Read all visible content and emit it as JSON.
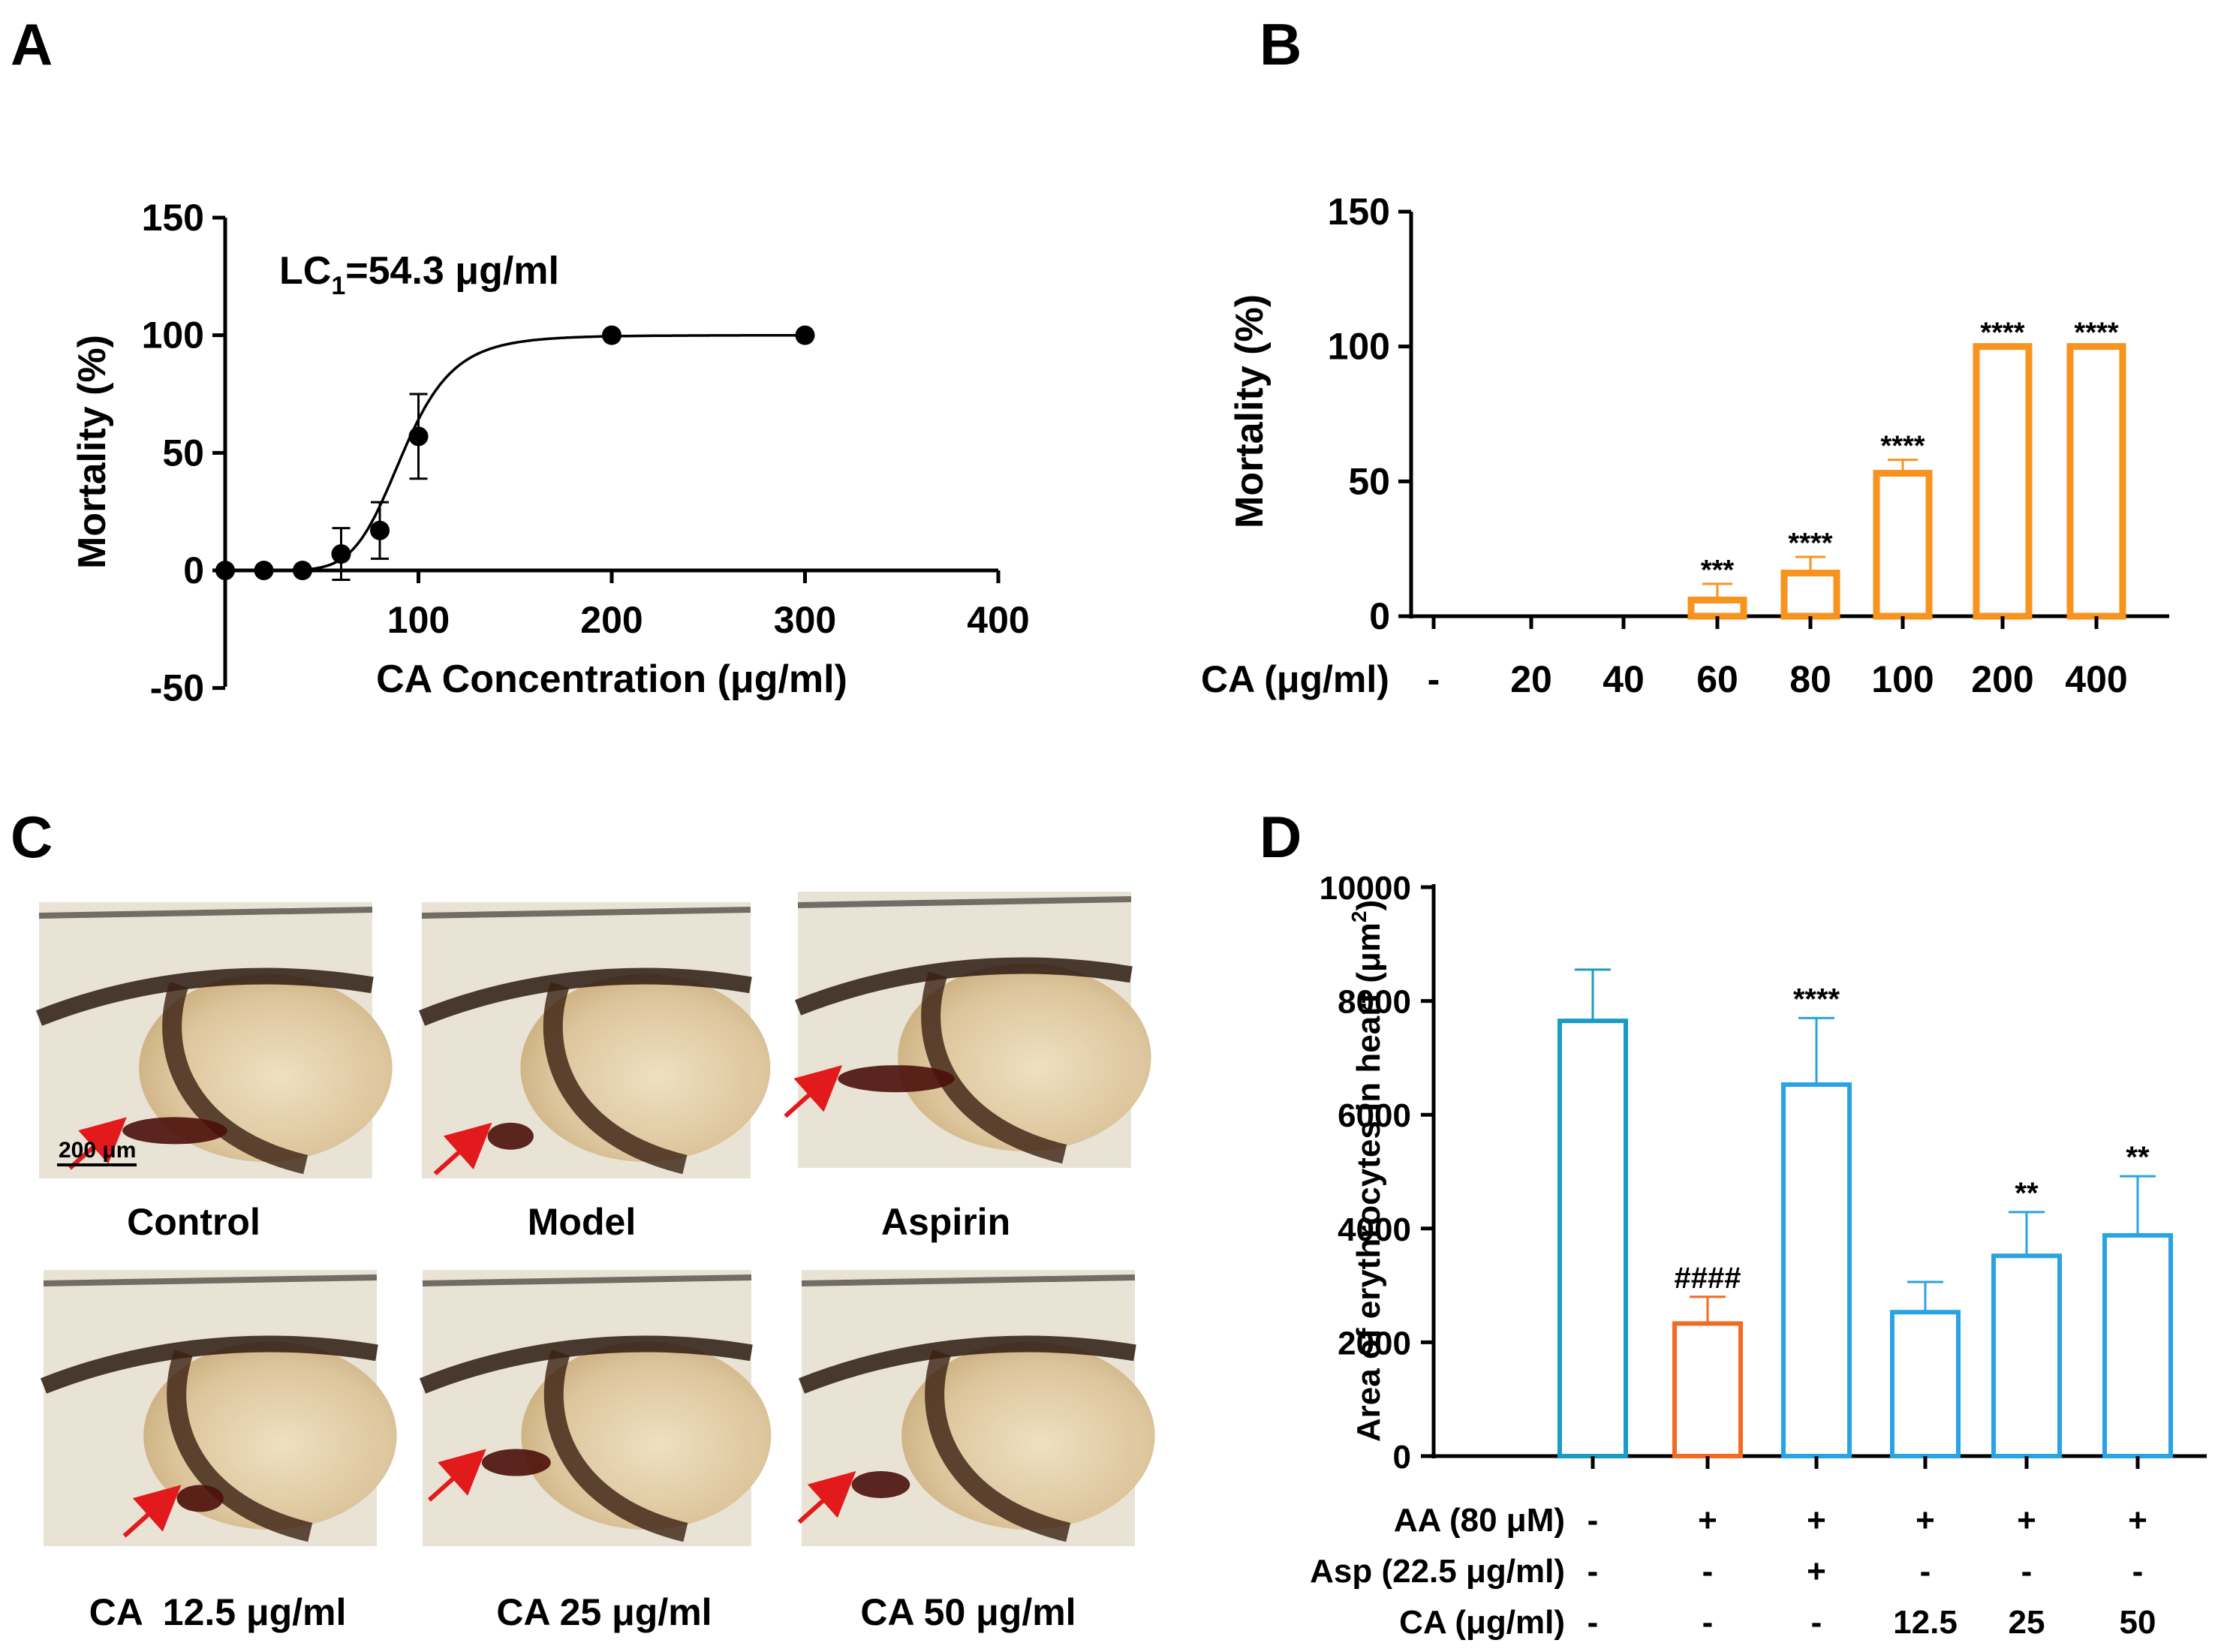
{
  "panels": {
    "A": {
      "letter": "A",
      "chart_data": {
        "type": "scatter",
        "title": "",
        "annotation_main": "LC",
        "annotation_sub": "1",
        "annotation_rest": "=54.3 μg/ml",
        "xlabel": "CA Concentration (μg/ml)",
        "ylabel": "Mortality (%)",
        "xlim": [
          0,
          400
        ],
        "ylim": [
          -50,
          150
        ],
        "x_ticks": [
          "100",
          "200",
          "300",
          "400"
        ],
        "y_ticks": [
          "150",
          "100",
          "50",
          "0",
          "-50"
        ],
        "x": [
          0,
          20,
          40,
          60,
          80,
          100,
          200,
          300
        ],
        "y": [
          0,
          0,
          0,
          7,
          17,
          57,
          100,
          100
        ],
        "err": [
          0,
          0,
          0,
          11,
          12,
          18,
          0,
          0
        ],
        "fit": {
          "bottom": 0,
          "top": 100,
          "ec50": 92,
          "hill": 7
        }
      }
    },
    "B": {
      "letter": "B",
      "chart_data": {
        "type": "bar",
        "ylabel": "Mortality (%)",
        "ylim": [
          0,
          150
        ],
        "y_ticks": [
          "150",
          "100",
          "50",
          "0"
        ],
        "row_label": "CA (μg/ml)",
        "categories": [
          "-",
          "20",
          "40",
          "60",
          "80",
          "100",
          "200",
          "400"
        ],
        "values": [
          0,
          0,
          0,
          6,
          16,
          53,
          100,
          100
        ],
        "err": [
          0,
          0,
          0,
          6,
          6,
          5,
          0,
          0
        ],
        "significance": [
          "",
          "",
          "",
          "***",
          "****",
          "****",
          "****",
          "****"
        ],
        "color": "#f7931e"
      }
    },
    "C": {
      "letter": "C",
      "scale_bar": "200 μm",
      "captions": [
        "Control",
        "Model",
        "Aspirin",
        "CA  12.5 μg/ml",
        "CA 25 μg/ml",
        "CA 50 μg/ml"
      ]
    },
    "D": {
      "letter": "D",
      "chart_data": {
        "type": "bar",
        "ylabel_main": "Area of erythrocytes in heart (μm",
        "ylabel_sup": "2",
        "ylabel_end": ")",
        "ylim": [
          0,
          10000
        ],
        "y_ticks": [
          "10000",
          "8000",
          "6000",
          "4000",
          "2000",
          "0"
        ],
        "values": [
          7650,
          2330,
          6530,
          2530,
          3520,
          3880
        ],
        "err": [
          900,
          470,
          1170,
          530,
          770,
          1040
        ],
        "significance": [
          "",
          "####",
          "****",
          "",
          "**",
          "**"
        ],
        "bar_colors": [
          "#1a9bc4",
          "#f26b21",
          "#29a3e3",
          "#29a3e3",
          "#29a3e3",
          "#29a3e3"
        ],
        "rows": [
          {
            "label": "AA (80 μM)",
            "values": [
              "-",
              "+",
              "+",
              "+",
              "+",
              "+"
            ]
          },
          {
            "label": "Asp (22.5 μg/ml)",
            "values": [
              "-",
              "-",
              "+",
              "-",
              "-",
              "-"
            ]
          },
          {
            "label": "CA (μg/ml)",
            "values": [
              "-",
              "-",
              "-",
              "12.5",
              "25",
              "50"
            ]
          }
        ]
      }
    }
  }
}
